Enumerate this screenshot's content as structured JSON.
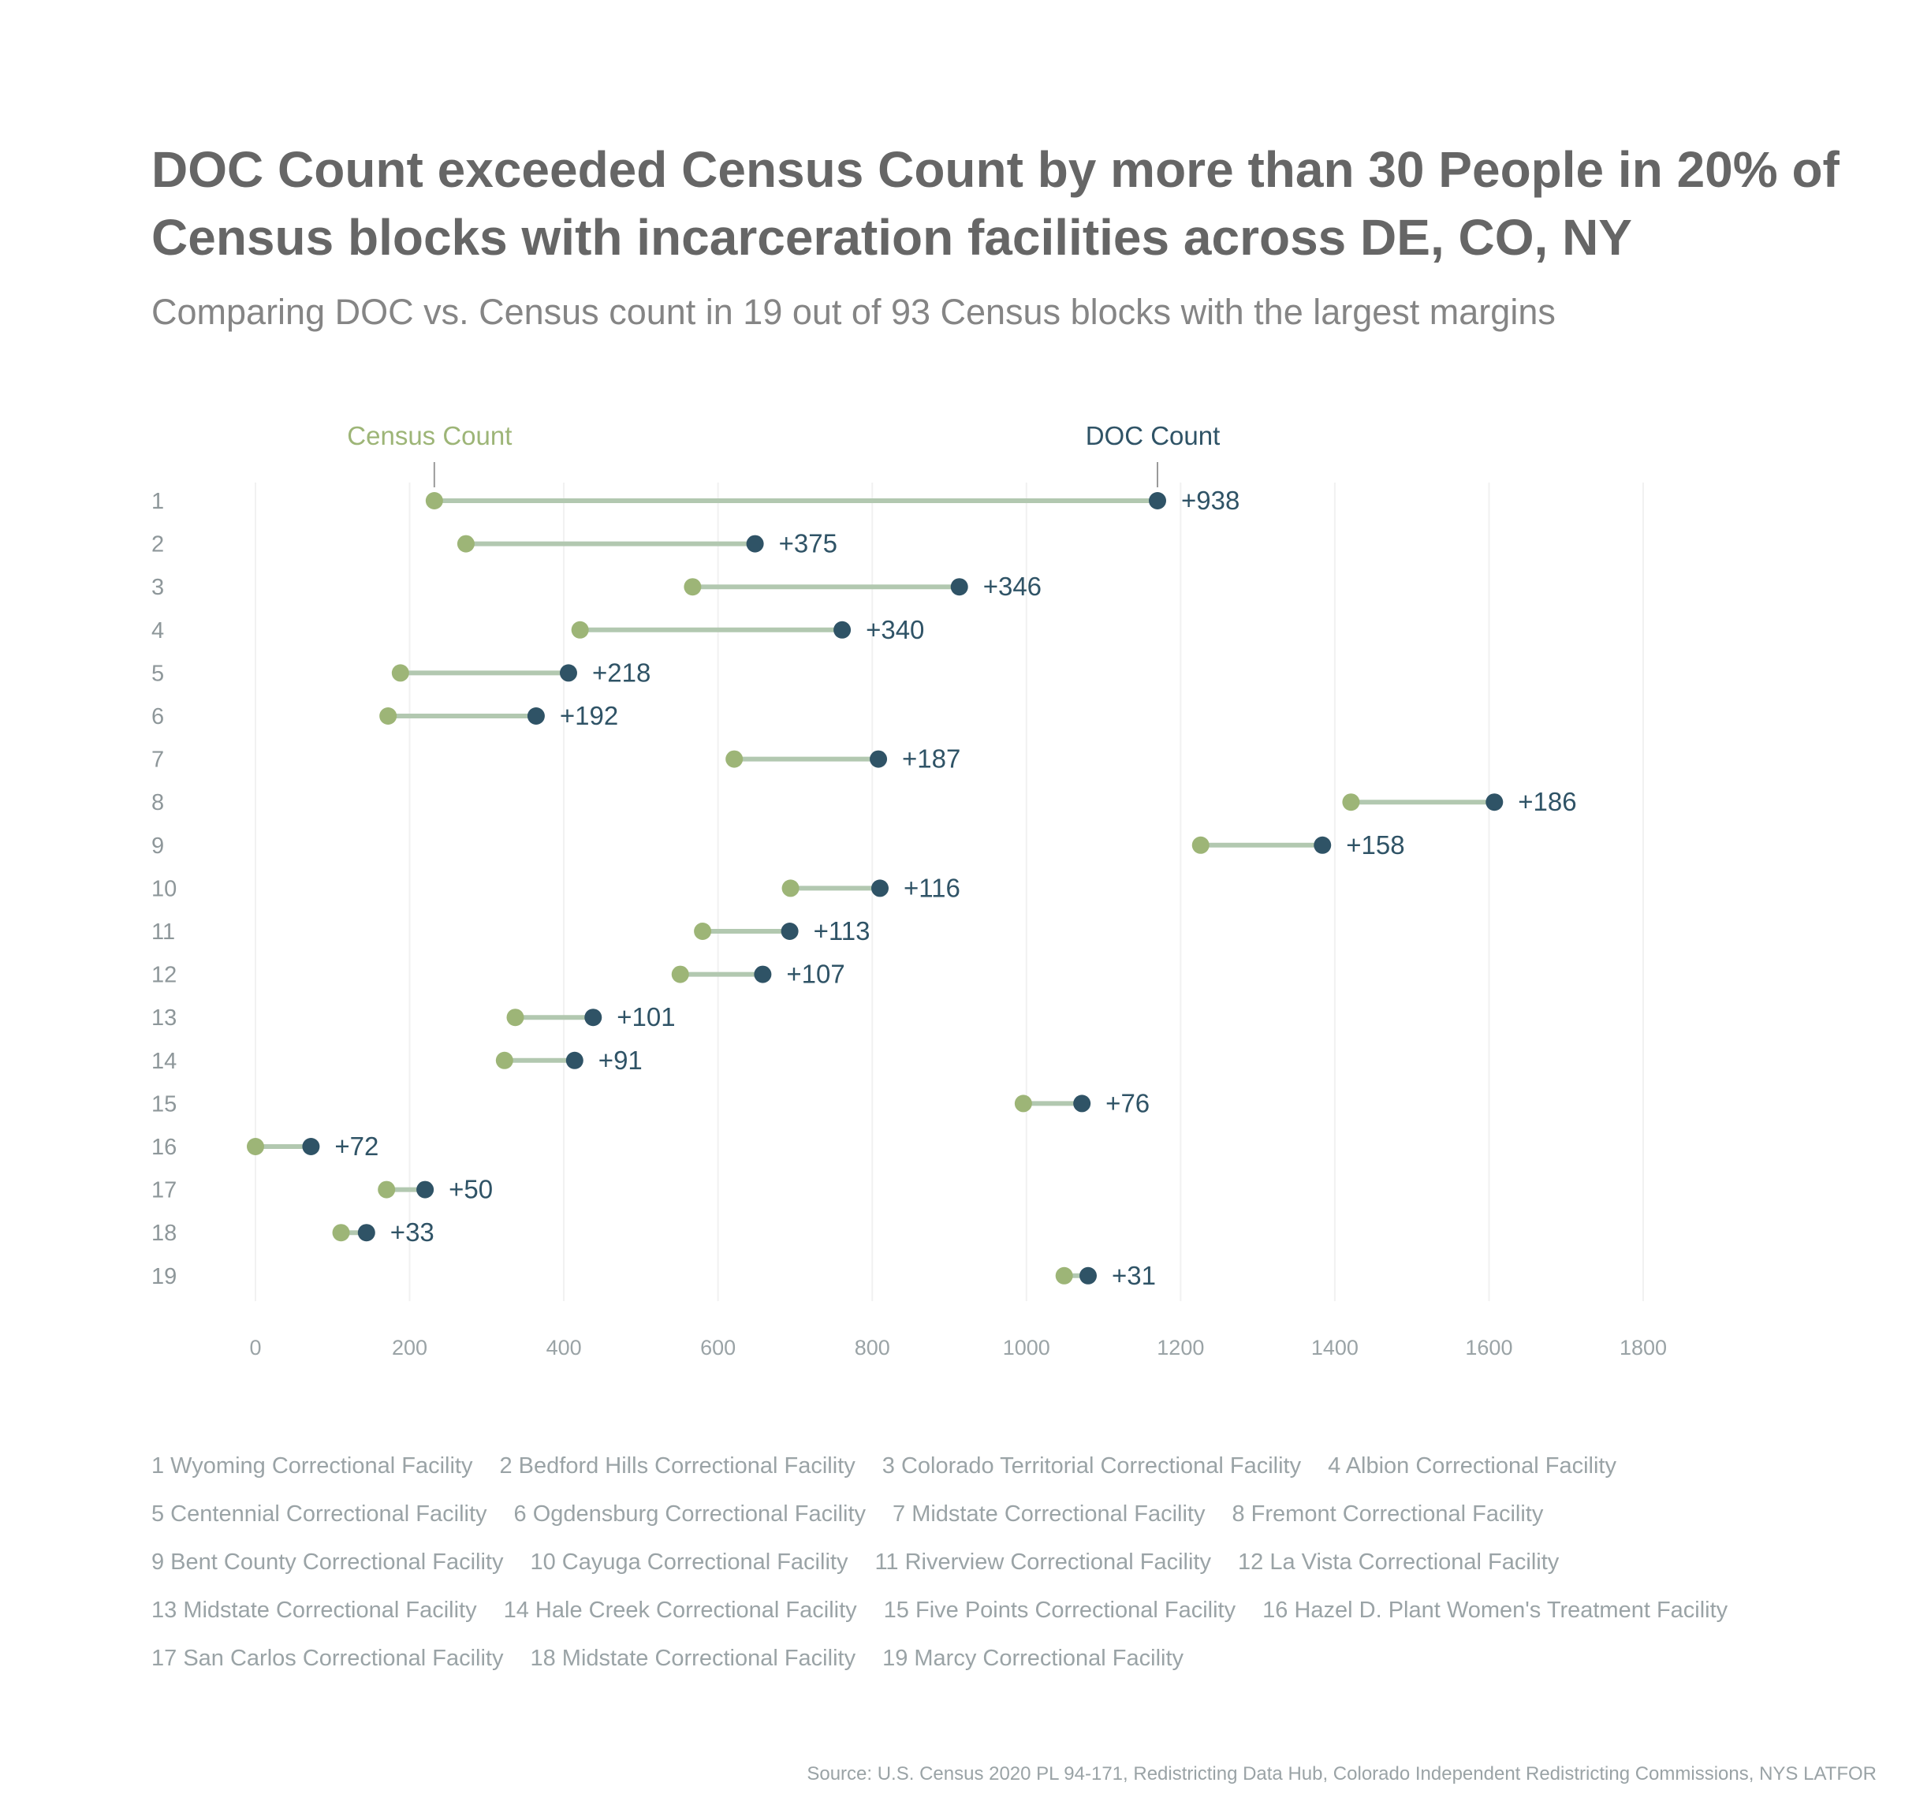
{
  "title": "DOC Count exceeded Census Count by more than 30 People in 20% of Census blocks with incarceration facilities across DE, CO, NY",
  "subtitle": "Comparing DOC vs. Census count in 19 out of 93 Census blocks with the largest margins",
  "source": "Source: U.S. Census 2020 PL 94-171, Redistricting Data Hub, Colorado Independent Redistricting Commissions, NYS LATFOR",
  "colors": {
    "census": "#9db577",
    "doc": "#2f5366",
    "connector": "#b2c8b0",
    "grid": "#f1f1f1",
    "axis_text": "#9aa3a6",
    "row_label": "#8e979a"
  },
  "chart_data": {
    "type": "dumbbell",
    "xlim": [
      0,
      1800
    ],
    "x_ticks": [
      0,
      200,
      400,
      600,
      800,
      1000,
      1200,
      1400,
      1600,
      1800
    ],
    "grid": true,
    "series": [
      {
        "name": "Census Count",
        "color": "#9db577"
      },
      {
        "name": "DOC Count",
        "color": "#2f5366"
      }
    ],
    "rows": [
      {
        "rank": "1",
        "facility": "Wyoming Correctional Facility",
        "census": 232,
        "doc": 1170,
        "diff_label": "+938"
      },
      {
        "rank": "2",
        "facility": "Bedford Hills Correctional Facility",
        "census": 273,
        "doc": 648,
        "diff_label": "+375"
      },
      {
        "rank": "3",
        "facility": "Colorado Territorial Correctional Facility",
        "census": 567,
        "doc": 913,
        "diff_label": "+346"
      },
      {
        "rank": "4",
        "facility": "Albion Correctional Facility",
        "census": 421,
        "doc": 761,
        "diff_label": "+340"
      },
      {
        "rank": "5",
        "facility": "Centennial Correctional Facility",
        "census": 188,
        "doc": 406,
        "diff_label": "+218"
      },
      {
        "rank": "6",
        "facility": "Ogdensburg Correctional Facility",
        "census": 172,
        "doc": 364,
        "diff_label": "+192"
      },
      {
        "rank": "7",
        "facility": "Midstate Correctional Facility",
        "census": 621,
        "doc": 808,
        "diff_label": "+187"
      },
      {
        "rank": "8",
        "facility": "Fremont Correctional Facility",
        "census": 1421,
        "doc": 1607,
        "diff_label": "+186"
      },
      {
        "rank": "9",
        "facility": "Bent County Correctional Facility",
        "census": 1226,
        "doc": 1384,
        "diff_label": "+158"
      },
      {
        "rank": "10",
        "facility": "Cayuga Correctional Facility",
        "census": 694,
        "doc": 810,
        "diff_label": "+116"
      },
      {
        "rank": "11",
        "facility": "Riverview Correctional Facility",
        "census": 580,
        "doc": 693,
        "diff_label": "+113"
      },
      {
        "rank": "12",
        "facility": "La Vista Correctional Facility",
        "census": 551,
        "doc": 658,
        "diff_label": "+107"
      },
      {
        "rank": "13",
        "facility": "Midstate Correctional Facility",
        "census": 337,
        "doc": 438,
        "diff_label": "+101"
      },
      {
        "rank": "14",
        "facility": "Hale Creek Correctional Facility",
        "census": 323,
        "doc": 414,
        "diff_label": "+91"
      },
      {
        "rank": "15",
        "facility": "Five Points Correctional Facility",
        "census": 996,
        "doc": 1072,
        "diff_label": "+76"
      },
      {
        "rank": "16",
        "facility": "Hazel D. Plant Women's Treatment Facility",
        "census": 0,
        "doc": 72,
        "diff_label": "+72"
      },
      {
        "rank": "17",
        "facility": "San Carlos Correctional Facility",
        "census": 170,
        "doc": 220,
        "diff_label": "+50"
      },
      {
        "rank": "18",
        "facility": "Midstate Correctional Facility",
        "census": 111,
        "doc": 144,
        "diff_label": "+33"
      },
      {
        "rank": "19",
        "facility": "Marcy Correctional Facility",
        "census": 1049,
        "doc": 1080,
        "diff_label": "+31"
      }
    ],
    "annotations": [
      {
        "text": "Census Count",
        "row": "1",
        "series": "Census Count"
      },
      {
        "text": "DOC Count",
        "row": "1",
        "series": "DOC Count"
      }
    ]
  }
}
